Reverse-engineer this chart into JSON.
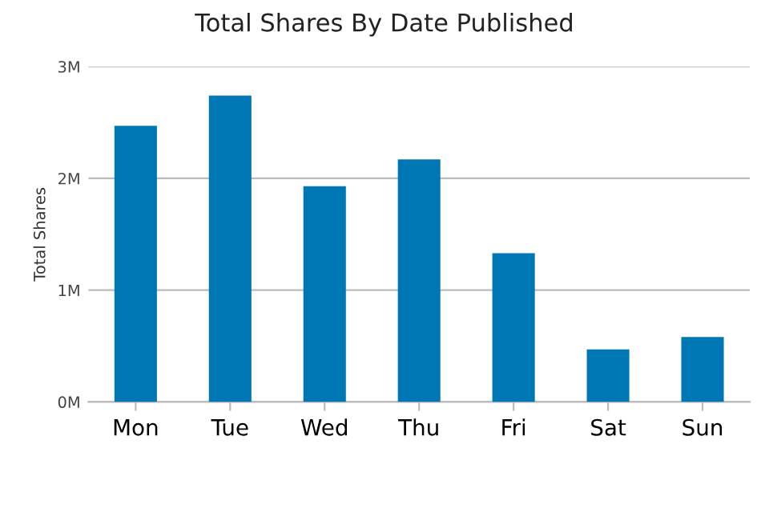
{
  "chart_data": {
    "type": "bar",
    "title": "Total Shares By Date Published",
    "ylabel": "Total Shares",
    "categories": [
      "Mon",
      "Tue",
      "Wed",
      "Thu",
      "Fri",
      "Sat",
      "Sun"
    ],
    "series": [
      {
        "color": "#0077b5",
        "values": [
          2.47,
          2.74,
          1.93,
          2.17,
          1.33,
          0.47,
          0.58
        ]
      }
    ],
    "ylim": [
      0,
      3
    ],
    "yticks": [
      {
        "value": 0,
        "label": "0M"
      },
      {
        "value": 1,
        "label": "1M"
      },
      {
        "value": 2,
        "label": "2M"
      },
      {
        "value": 3,
        "label": "3M"
      }
    ],
    "grid": "y"
  }
}
